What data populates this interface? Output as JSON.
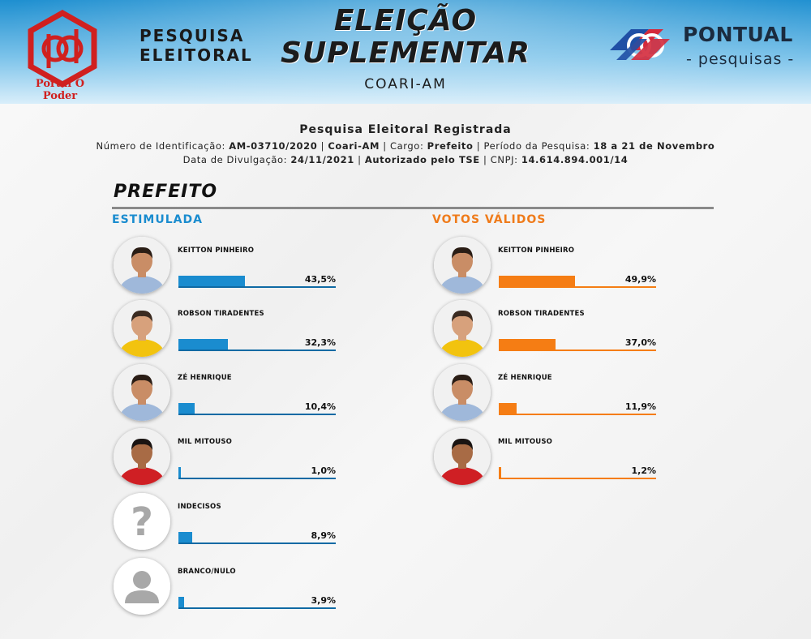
{
  "header": {
    "brand_left": "Portal O Poder",
    "pesquisa_line1": "PESQUISA",
    "pesquisa_line2": "ELEITORAL",
    "title_line1": "ELEIÇÃO",
    "title_line2": "SUPLEMENTAR",
    "city": "COARI-AM",
    "brand_right": "PONTUAL",
    "brand_right_sub": "- pesquisas -"
  },
  "info": {
    "title": "Pesquisa Eleitoral Registrada",
    "line1": [
      {
        "text": "Número de Identificação: ",
        "bold": false
      },
      {
        "text": "AM-03710/2020",
        "bold": true
      },
      {
        "text": " | ",
        "bold": false
      },
      {
        "text": "Coari-AM",
        "bold": true
      },
      {
        "text": " | Cargo: ",
        "bold": false
      },
      {
        "text": "Prefeito",
        "bold": true
      },
      {
        "text": " | Período da Pesquisa: ",
        "bold": false
      },
      {
        "text": "18 a 21 de Novembro",
        "bold": true
      }
    ],
    "line2": [
      {
        "text": "Data de Divulgação: ",
        "bold": false
      },
      {
        "text": "24/11/2021",
        "bold": true
      },
      {
        "text": " | ",
        "bold": false
      },
      {
        "text": "Autorizado pelo TSE",
        "bold": true
      },
      {
        "text": " | CNPJ: ",
        "bold": false
      },
      {
        "text": "14.614.894.001/14",
        "bold": true
      }
    ]
  },
  "section_title": "PREFEITO",
  "colors": {
    "stimulated": "#1a8ccf",
    "stimulated_dark": "#0f6aa4",
    "valid": "#f57d14",
    "valid_title": "#ef7b1a"
  },
  "chart_data": [
    {
      "type": "bar",
      "title": "ESTIMULADA",
      "categories": [
        "KEITTON PINHEIRO",
        "ROBSON TIRADENTES",
        "ZÉ HENRIQUE",
        "MIL MITOUSO",
        "INDECISOS",
        "BRANCO/NULO"
      ],
      "values": [
        43.5,
        32.3,
        10.4,
        1.0,
        8.9,
        3.9
      ],
      "labels": [
        "43,5%",
        "32,3%",
        "10,4%",
        "1,0%",
        "8,9%",
        "3,9%"
      ],
      "avatars": [
        "photo-man-blue-shirt",
        "photo-man-yellow-shirt",
        "photo-man-blue-shirt",
        "photo-man-red-shirt",
        "question-mark-icon",
        "person-silhouette-icon"
      ],
      "unit": "%",
      "xlim": [
        0,
        100
      ]
    },
    {
      "type": "bar",
      "title": "VOTOS VÁLIDOS",
      "categories": [
        "KEITTON PINHEIRO",
        "ROBSON TIRADENTES",
        "ZÉ HENRIQUE",
        "MIL MITOUSO"
      ],
      "values": [
        49.9,
        37.0,
        11.9,
        1.2
      ],
      "labels": [
        "49,9%",
        "37,0%",
        "11,9%",
        "1,2%"
      ],
      "avatars": [
        "photo-man-blue-shirt",
        "photo-man-yellow-shirt",
        "photo-man-blue-shirt",
        "photo-man-red-shirt"
      ],
      "unit": "%",
      "xlim": [
        0,
        100
      ]
    }
  ]
}
